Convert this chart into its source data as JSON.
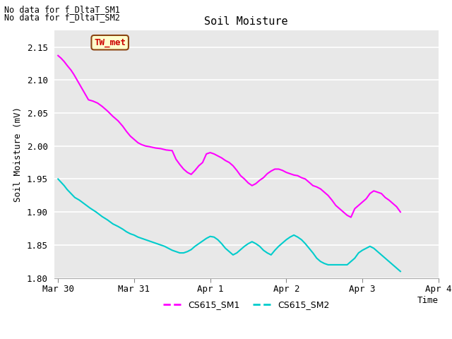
{
  "title": "Soil Moisture",
  "ylabel": "Soil Moisture (mV)",
  "xlabel": "Time",
  "annotations": [
    "No data for f_DltaT_SM1",
    "No data for f_DltaT_SM2"
  ],
  "legend_labels": [
    "CS615_SM1",
    "CS615_SM2"
  ],
  "legend_colors": [
    "#ff00ff",
    "#00cccc"
  ],
  "tw_met_label": "TW_met",
  "tw_met_facecolor": "#ffffcc",
  "tw_met_edgecolor": "#8b4513",
  "tw_met_textcolor": "#cc0000",
  "ylim": [
    1.8,
    2.175
  ],
  "yticks": [
    1.8,
    1.85,
    1.9,
    1.95,
    2.0,
    2.05,
    2.1,
    2.15
  ],
  "axes_bg": "#e8e8e8",
  "grid_color": "#ffffff",
  "line1_color": "#ff00ff",
  "line2_color": "#00cccc",
  "line_width": 1.5,
  "xtick_labels": [
    "Mar 30",
    "Mar 31",
    "Apr 1",
    "Apr 2",
    "Apr 3",
    "Apr 4"
  ],
  "xtick_positions": [
    0,
    1,
    2,
    3,
    4,
    5
  ],
  "xlim": [
    -0.05,
    4.55
  ],
  "sm1_x": [
    0.0,
    0.04,
    0.08,
    0.12,
    0.17,
    0.21,
    0.25,
    0.3,
    0.35,
    0.4,
    0.46,
    0.52,
    0.58,
    0.65,
    0.72,
    0.79,
    0.85,
    0.9,
    0.95,
    1.0,
    1.05,
    1.1,
    1.15,
    1.2,
    1.28,
    1.35,
    1.42,
    1.5,
    1.55,
    1.6,
    1.65,
    1.7,
    1.75,
    1.8,
    1.85,
    1.9,
    1.95,
    2.0,
    2.05,
    2.1,
    2.15,
    2.2,
    2.25,
    2.3,
    2.35,
    2.4,
    2.45,
    2.5,
    2.55,
    2.6,
    2.65,
    2.7,
    2.75,
    2.8,
    2.85,
    2.9,
    2.95,
    3.0,
    3.05,
    3.1,
    3.15,
    3.2,
    3.25,
    3.3,
    3.35,
    3.4,
    3.45,
    3.5,
    3.55,
    3.6,
    3.65,
    3.7,
    3.75,
    3.8,
    3.85,
    3.9,
    3.95,
    4.0,
    4.05,
    4.1,
    4.15,
    4.2,
    4.25,
    4.3,
    4.35,
    4.4,
    4.45,
    4.5
  ],
  "sm1_y": [
    2.137,
    2.133,
    2.128,
    2.122,
    2.115,
    2.108,
    2.1,
    2.09,
    2.08,
    2.07,
    2.068,
    2.065,
    2.06,
    2.053,
    2.045,
    2.038,
    2.03,
    2.022,
    2.015,
    2.01,
    2.005,
    2.002,
    2.0,
    1.999,
    1.997,
    1.996,
    1.994,
    1.993,
    1.98,
    1.972,
    1.965,
    1.96,
    1.957,
    1.963,
    1.97,
    1.975,
    1.988,
    1.99,
    1.988,
    1.985,
    1.982,
    1.978,
    1.975,
    1.97,
    1.963,
    1.955,
    1.95,
    1.944,
    1.94,
    1.943,
    1.948,
    1.952,
    1.958,
    1.962,
    1.965,
    1.965,
    1.963,
    1.96,
    1.958,
    1.956,
    1.955,
    1.952,
    1.95,
    1.945,
    1.94,
    1.938,
    1.935,
    1.93,
    1.925,
    1.918,
    1.91,
    1.905,
    1.9,
    1.895,
    1.892,
    1.905,
    1.91,
    1.915,
    1.92,
    1.928,
    1.932,
    1.93,
    1.928,
    1.922,
    1.918,
    1.913,
    1.908,
    1.9
  ],
  "sm2_x": [
    0.0,
    0.04,
    0.08,
    0.12,
    0.17,
    0.22,
    0.28,
    0.35,
    0.42,
    0.5,
    0.58,
    0.65,
    0.72,
    0.79,
    0.85,
    0.9,
    0.95,
    1.0,
    1.05,
    1.1,
    1.15,
    1.2,
    1.25,
    1.3,
    1.35,
    1.4,
    1.45,
    1.5,
    1.55,
    1.6,
    1.65,
    1.7,
    1.75,
    1.8,
    1.85,
    1.9,
    1.95,
    2.0,
    2.05,
    2.1,
    2.15,
    2.2,
    2.25,
    2.3,
    2.35,
    2.4,
    2.45,
    2.5,
    2.55,
    2.6,
    2.65,
    2.7,
    2.75,
    2.8,
    2.85,
    2.9,
    2.95,
    3.0,
    3.05,
    3.1,
    3.15,
    3.2,
    3.25,
    3.3,
    3.35,
    3.4,
    3.45,
    3.5,
    3.55,
    3.6,
    3.65,
    3.7,
    3.75,
    3.8,
    3.85,
    3.9,
    3.95,
    4.0,
    4.05,
    4.1,
    4.15,
    4.2,
    4.25,
    4.3,
    4.35,
    4.4,
    4.45,
    4.5
  ],
  "sm2_y": [
    1.95,
    1.945,
    1.94,
    1.934,
    1.928,
    1.922,
    1.918,
    1.912,
    1.906,
    1.9,
    1.893,
    1.888,
    1.882,
    1.878,
    1.874,
    1.87,
    1.867,
    1.865,
    1.862,
    1.86,
    1.858,
    1.856,
    1.854,
    1.852,
    1.85,
    1.848,
    1.845,
    1.842,
    1.84,
    1.838,
    1.838,
    1.84,
    1.843,
    1.848,
    1.852,
    1.856,
    1.86,
    1.863,
    1.862,
    1.858,
    1.852,
    1.845,
    1.84,
    1.835,
    1.838,
    1.843,
    1.848,
    1.852,
    1.855,
    1.852,
    1.848,
    1.842,
    1.838,
    1.835,
    1.842,
    1.848,
    1.853,
    1.858,
    1.862,
    1.865,
    1.862,
    1.858,
    1.852,
    1.845,
    1.838,
    1.83,
    1.825,
    1.822,
    1.82,
    1.82,
    1.82,
    1.82,
    1.82,
    1.82,
    1.825,
    1.83,
    1.838,
    1.842,
    1.845,
    1.848,
    1.845,
    1.84,
    1.835,
    1.83,
    1.825,
    1.82,
    1.815,
    1.81
  ]
}
